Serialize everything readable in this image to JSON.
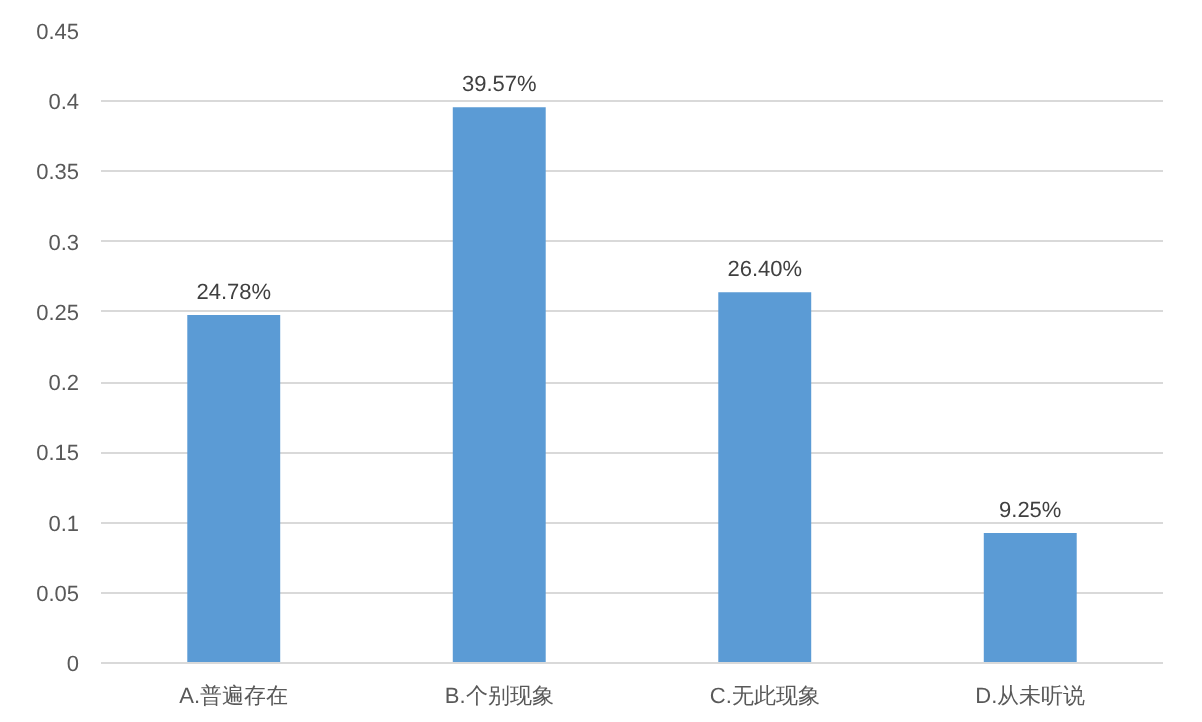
{
  "chart_data": {
    "type": "bar",
    "categories": [
      "A.普遍存在",
      "B.个别现象",
      "C.无此现象",
      "D.从未听说"
    ],
    "values": [
      0.2478,
      0.3957,
      0.264,
      0.0925
    ],
    "value_labels": [
      "24.78%",
      "39.57%",
      "26.40%",
      "9.25%"
    ],
    "color": "#5b9bd5",
    "ylim": [
      0,
      0.45
    ],
    "yticks": [
      0,
      0.05,
      0.1,
      0.15,
      0.2,
      0.25,
      0.3,
      0.35,
      0.4,
      0.45
    ],
    "grid": "y"
  }
}
